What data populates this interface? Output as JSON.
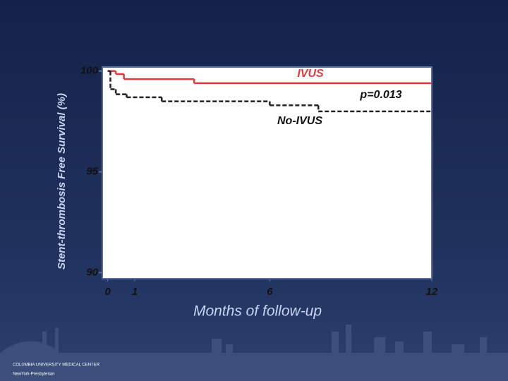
{
  "chart_data": {
    "type": "step",
    "y_axis_label": "Stent-thrombosis Free Survival (%)",
    "x_axis_label": "Months of follow-up",
    "xlim": [
      -0.2,
      12
    ],
    "ylim": [
      89.7,
      100.2
    ],
    "xticks": [
      0,
      1,
      6,
      12
    ],
    "yticks": [
      90,
      95,
      100
    ],
    "series": [
      {
        "name": "IVUS",
        "color": "#e03a3a",
        "dashed": false,
        "x": [
          0,
          0.3,
          0.6,
          3.2,
          12
        ],
        "values": [
          100,
          99.85,
          99.6,
          99.4,
          99.4
        ]
      },
      {
        "name": "No-IVUS",
        "color": "#222222",
        "dashed": true,
        "x": [
          0,
          0.1,
          0.3,
          0.7,
          2.0,
          6.0,
          7.8,
          12
        ],
        "values": [
          100,
          99.1,
          98.85,
          98.7,
          98.5,
          98.3,
          98.0,
          98.0
        ]
      }
    ],
    "annotations": [
      "p=0.013"
    ]
  },
  "footer": {
    "logo_1": "COLUMBIA UNIVERSITY MEDICAL CENTER",
    "logo_2": "NewYork-Presbyterian"
  }
}
